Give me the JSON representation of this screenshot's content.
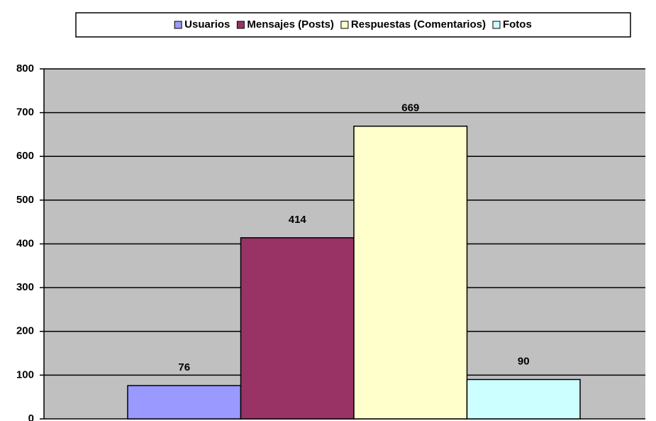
{
  "chart_data": {
    "type": "bar",
    "series": [
      {
        "name": "Usuarios",
        "color": "#9999ff",
        "values": [
          76
        ]
      },
      {
        "name": "Mensajes (Posts)",
        "color": "#993366",
        "values": [
          414
        ]
      },
      {
        "name": "Respuestas (Comentarios)",
        "color": "#ffffcc",
        "values": [
          669
        ]
      },
      {
        "name": "Fotos",
        "color": "#ccffff",
        "values": [
          90
        ]
      }
    ],
    "ylim": [
      0,
      800
    ],
    "yticks": [
      0,
      100,
      200,
      300,
      400,
      500,
      600,
      700,
      800
    ],
    "grid": true,
    "legend": "top",
    "plot_background": "#c0c0c0"
  }
}
